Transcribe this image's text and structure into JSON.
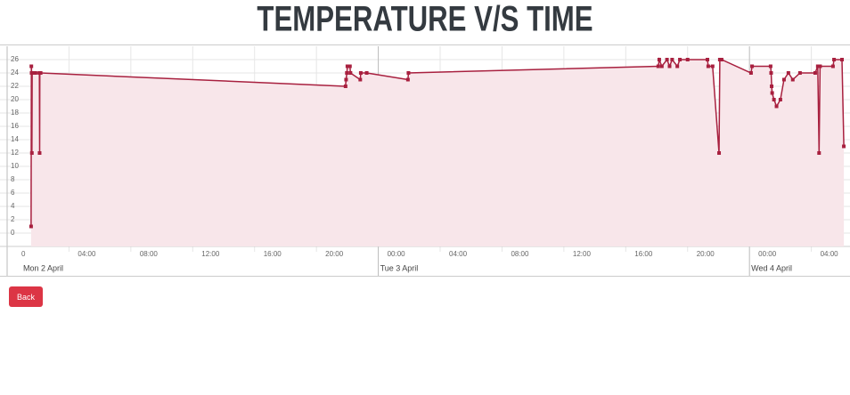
{
  "chart_data": {
    "type": "line",
    "title": "TEMPERATURE V/S TIME",
    "x": [
      "2 April 01:33",
      "2 April 01:34",
      "2 April 01:35",
      "2 April 01:36",
      "2 April 01:37",
      "2 April 01:50",
      "2 April 02:05",
      "2 April 02:06",
      "2 April 02:07",
      "2 April 02:10",
      "2 April 21:53",
      "2 April 21:55",
      "2 April 21:58",
      "2 April 22:00",
      "2 April 22:10",
      "2 April 22:12",
      "2 April 22:50",
      "2 April 22:52",
      "2 April 23:15",
      "3 April 01:55",
      "3 April 01:57",
      "3 April 18:06",
      "3 April 18:10",
      "3 April 18:20",
      "3 April 18:40",
      "3 April 18:50",
      "3 April 19:00",
      "3 April 19:20",
      "3 April 19:30",
      "3 April 20:00",
      "3 April 21:17",
      "3 April 21:20",
      "3 April 21:37",
      "3 April 22:02",
      "3 April 22:05",
      "3 April 22:12",
      "4 April 00:06",
      "4 April 00:10",
      "4 April 01:22",
      "4 April 01:24",
      "4 April 01:26",
      "4 April 01:28",
      "4 April 01:35",
      "4 April 01:45",
      "4 April 02:00",
      "4 April 02:14",
      "4 April 02:31",
      "4 April 02:48",
      "4 April 03:16",
      "4 April 04:15",
      "4 April 04:25",
      "4 April 04:30",
      "4 April 04:34",
      "4 April 05:24",
      "4 April 05:28",
      "4 April 05:59",
      "4 April 06:06"
    ],
    "values": [
      1,
      25,
      24,
      12,
      24,
      24,
      24,
      12,
      24,
      24,
      22,
      23,
      24,
      25,
      25,
      24,
      23,
      24,
      24,
      23,
      24,
      25,
      26,
      25,
      26,
      25,
      26,
      25,
      26,
      26,
      26,
      25,
      25,
      12,
      26,
      26,
      24,
      25,
      25,
      24,
      22,
      21,
      20,
      19,
      20,
      23,
      24,
      23,
      24,
      24,
      25,
      12,
      25,
      25,
      26,
      26,
      13
    ],
    "color": "#a8203f",
    "fill": "#f8e6ea",
    "ylim": [
      -2,
      28
    ],
    "yticks": [
      0,
      2,
      4,
      6,
      8,
      10,
      12,
      14,
      16,
      18,
      20,
      22,
      24,
      26
    ],
    "xlim": [
      "2 April 00:00",
      "4 April 06:30"
    ],
    "xticks": [
      {
        "value": "2 April 00:00",
        "label": "0"
      },
      {
        "value": "2 April 04:00",
        "label": "04:00"
      },
      {
        "value": "2 April 08:00",
        "label": "08:00"
      },
      {
        "value": "2 April 12:00",
        "label": "12:00"
      },
      {
        "value": "2 April 16:00",
        "label": "16:00"
      },
      {
        "value": "2 April 20:00",
        "label": "20:00"
      },
      {
        "value": "3 April 00:00",
        "label": "00:00"
      },
      {
        "value": "3 April 04:00",
        "label": "04:00"
      },
      {
        "value": "3 April 08:00",
        "label": "08:00"
      },
      {
        "value": "3 April 12:00",
        "label": "12:00"
      },
      {
        "value": "3 April 16:00",
        "label": "16:00"
      },
      {
        "value": "3 April 20:00",
        "label": "20:00"
      },
      {
        "value": "4 April 00:00",
        "label": "00:00"
      },
      {
        "value": "4 April 04:00",
        "label": "04:00"
      }
    ],
    "day_labels": [
      {
        "value": "2 April 00:00",
        "label": "Mon 2 April"
      },
      {
        "value": "3 April 00:00",
        "label": "Tue 3 April"
      },
      {
        "value": "4 April 00:00",
        "label": "Wed 4 April"
      }
    ],
    "grid": true
  },
  "button": "Back"
}
